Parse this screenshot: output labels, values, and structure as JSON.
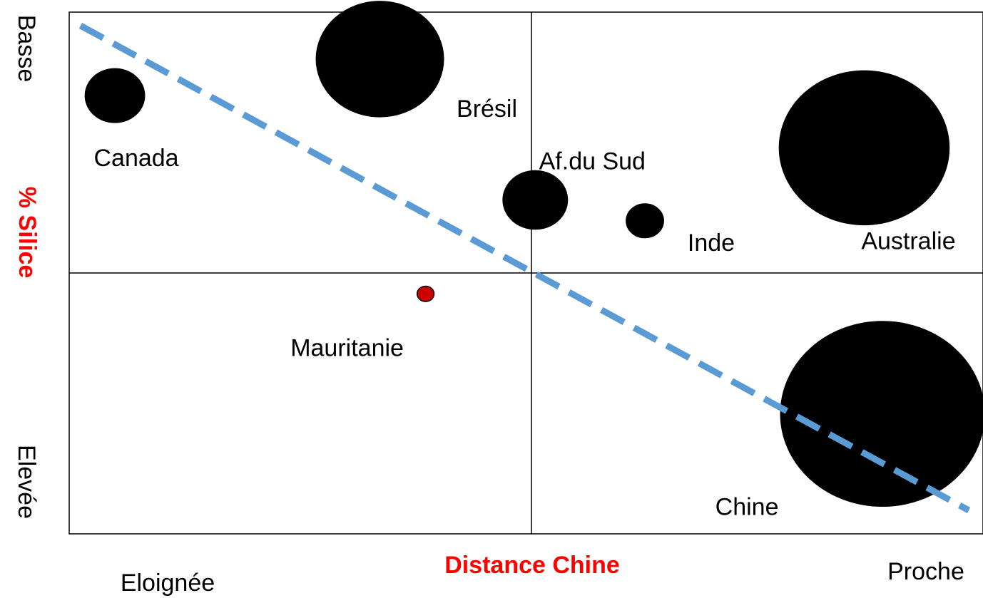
{
  "chart_data": {
    "type": "bubble-matrix",
    "title": "",
    "x_axis": {
      "title": "Distance Chine",
      "low_label": "Eloignée",
      "high_label": "Proche"
    },
    "y_axis": {
      "title": "% Silice",
      "top_label": "Basse",
      "bottom_label": "Elevée"
    },
    "points": [
      {
        "label": "Canada",
        "x": 0.05,
        "y": 0.84,
        "size": 0.35,
        "color": "#000000"
      },
      {
        "label": "Brésil",
        "x": 0.34,
        "y": 0.91,
        "size": 0.75,
        "color": "#000000"
      },
      {
        "label": "Af.du Sud",
        "x": 0.51,
        "y": 0.64,
        "size": 0.38,
        "color": "#000000"
      },
      {
        "label": "Inde",
        "x": 0.63,
        "y": 0.6,
        "size": 0.22,
        "color": "#000000"
      },
      {
        "label": "Australie",
        "x": 0.87,
        "y": 0.74,
        "size": 1.0,
        "color": "#000000"
      },
      {
        "label": "Mauritanie",
        "x": 0.39,
        "y": 0.46,
        "size": 0.1,
        "color": "#cc0000"
      },
      {
        "label": "Chine",
        "x": 0.89,
        "y": 0.23,
        "size": 1.2,
        "color": "#000000"
      }
    ],
    "trend_line": {
      "style": "dashed",
      "color": "#5b9bd5"
    },
    "colors": {
      "axis_title": "#ff0000",
      "text": "#000000",
      "grid": "#000000"
    }
  }
}
